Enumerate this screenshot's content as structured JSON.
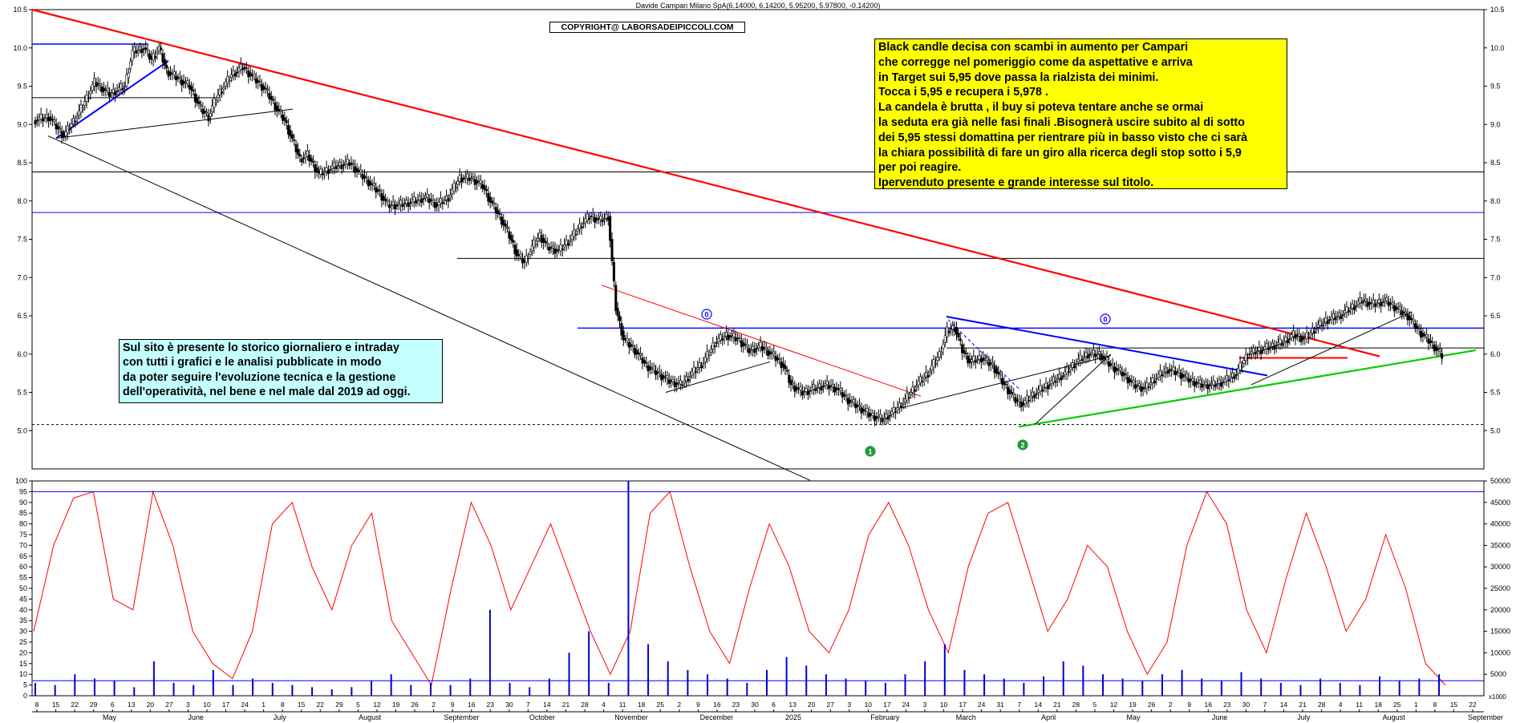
{
  "window": {
    "title": "Davide Campari Milano SpA(6.14000, 6.14200, 5.95200, 5.97800, -0.14200)",
    "copyright": "COPYRIGHT@ LABORSADEIPICCOLI.COM"
  },
  "annotations": {
    "yellow_note": "Black candle decisa con scambi in aumento per Campari\nche corregge nel pomeriggio come da aspettative e arriva\nin Target sui 5,95 dove passa la rialzista dei minimi.\nTocca i 5,95 e recupera i 5,978 .\nLa candela è brutta , il buy si poteva tentare anche se ormai\nla seduta era già nelle fasi finali .Bisognerà uscire subito al di sotto\ndei 5,95 stessi domattina per rientrare più in basso visto che ci sarà\nla chiara possibilità di fare un giro alla ricerca degli stop sotto i 5,9\nper poi reagire.\nIpervenduto presente e grande interesse sul titolo.",
    "cyan_note": "Sul sito è presente lo storico giornaliero e intraday\ncon tutti i grafici e le analisi pubblicate in modo\nda poter seguire l'evoluzione tecnica e la gestione\ndell'operatività, nel bene e nel male dal 2019 ad oggi.",
    "markers": [
      "1",
      "2",
      "0",
      "0"
    ]
  },
  "colors": {
    "candle_up": "#ffffff",
    "candle_down": "#000000",
    "trendline_red": "#ff0000",
    "trendline_blue": "#0000ff",
    "trendline_green": "#00cc00",
    "oscillator": "#ff0000",
    "volume": "#0000cc",
    "marker_green": "#1f9a3a",
    "note_yellow": "#ffff00",
    "note_cyan": "#c4ffff"
  },
  "chart_data": [
    {
      "type": "candlestick",
      "title": "Davide Campari Milano SpA(6.14000, 6.14200, 5.95200, 5.97800, -0.14200)",
      "ylim": [
        4.5,
        10.5
      ],
      "y_ticks": [
        "10.5",
        "10.0",
        "9.5",
        "9.0",
        "8.5",
        "8.0",
        "7.5",
        "7.0",
        "6.5",
        "6.0",
        "5.5",
        "5.0"
      ],
      "x_day_labels": [
        "8",
        "15",
        "22",
        "29",
        "6",
        "13",
        "20",
        "27",
        "3",
        "10",
        "17",
        "24",
        "1",
        "8",
        "15",
        "22",
        "29",
        "5",
        "12",
        "19",
        "26",
        "2",
        "9",
        "16",
        "23",
        "30",
        "7",
        "14",
        "21",
        "28",
        "4",
        "11",
        "18",
        "25",
        "2",
        "9",
        "16",
        "23",
        "30",
        "6",
        "13",
        "20",
        "27",
        "3",
        "10",
        "17",
        "24",
        "3",
        "10",
        "17",
        "24",
        "31",
        "7",
        "14",
        "21",
        "28",
        "5",
        "12",
        "19",
        "26",
        "2",
        "9",
        "16",
        "23",
        "30",
        "7",
        "14",
        "21",
        "28",
        "4",
        "11",
        "18",
        "25",
        "1",
        "8",
        "15",
        "22"
      ],
      "x_month_labels": [
        "May",
        "June",
        "July",
        "August",
        "September",
        "October",
        "November",
        "December",
        "2025",
        "February",
        "March",
        "April",
        "May",
        "June",
        "July",
        "August",
        "September"
      ],
      "price_path": [
        [
          0,
          9.05
        ],
        [
          8,
          9.1
        ],
        [
          16,
          8.85
        ],
        [
          25,
          9.2
        ],
        [
          32,
          9.55
        ],
        [
          40,
          9.4
        ],
        [
          48,
          9.5
        ],
        [
          52,
          9.95
        ],
        [
          58,
          10.0
        ],
        [
          62,
          9.85
        ],
        [
          66,
          10.0
        ],
        [
          70,
          9.7
        ],
        [
          76,
          9.6
        ],
        [
          82,
          9.5
        ],
        [
          88,
          9.2
        ],
        [
          92,
          9.1
        ],
        [
          96,
          9.35
        ],
        [
          100,
          9.5
        ],
        [
          104,
          9.65
        ],
        [
          110,
          9.75
        ],
        [
          116,
          9.6
        ],
        [
          122,
          9.45
        ],
        [
          128,
          9.2
        ],
        [
          132,
          9.05
        ],
        [
          136,
          8.8
        ],
        [
          140,
          8.55
        ],
        [
          144,
          8.6
        ],
        [
          150,
          8.35
        ],
        [
          158,
          8.45
        ],
        [
          166,
          8.5
        ],
        [
          172,
          8.35
        ],
        [
          178,
          8.2
        ],
        [
          182,
          8.1
        ],
        [
          186,
          7.95
        ],
        [
          192,
          7.95
        ],
        [
          200,
          8.0
        ],
        [
          206,
          8.05
        ],
        [
          212,
          7.95
        ],
        [
          218,
          8.05
        ],
        [
          224,
          8.3
        ],
        [
          230,
          8.3
        ],
        [
          236,
          8.2
        ],
        [
          240,
          8.0
        ],
        [
          246,
          7.75
        ],
        [
          250,
          7.55
        ],
        [
          254,
          7.3
        ],
        [
          258,
          7.2
        ],
        [
          262,
          7.4
        ],
        [
          266,
          7.55
        ],
        [
          270,
          7.4
        ],
        [
          276,
          7.35
        ],
        [
          282,
          7.5
        ],
        [
          288,
          7.7
        ],
        [
          292,
          7.8
        ],
        [
          298,
          7.75
        ],
        [
          302,
          7.8
        ],
        [
          306,
          6.6
        ],
        [
          310,
          6.2
        ],
        [
          316,
          6.05
        ],
        [
          322,
          5.85
        ],
        [
          328,
          5.75
        ],
        [
          334,
          5.65
        ],
        [
          340,
          5.6
        ],
        [
          346,
          5.75
        ],
        [
          352,
          5.9
        ],
        [
          358,
          6.15
        ],
        [
          364,
          6.25
        ],
        [
          370,
          6.2
        ],
        [
          376,
          6.05
        ],
        [
          382,
          6.1
        ],
        [
          388,
          6.0
        ],
        [
          394,
          5.85
        ],
        [
          398,
          5.6
        ],
        [
          404,
          5.5
        ],
        [
          410,
          5.55
        ],
        [
          416,
          5.6
        ],
        [
          422,
          5.55
        ],
        [
          428,
          5.4
        ],
        [
          434,
          5.3
        ],
        [
          440,
          5.2
        ],
        [
          446,
          5.15
        ],
        [
          452,
          5.25
        ],
        [
          458,
          5.4
        ],
        [
          464,
          5.6
        ],
        [
          470,
          5.75
        ],
        [
          476,
          6.0
        ],
        [
          480,
          6.3
        ],
        [
          484,
          6.35
        ],
        [
          488,
          6.05
        ],
        [
          492,
          5.9
        ],
        [
          498,
          5.95
        ],
        [
          504,
          5.85
        ],
        [
          510,
          5.6
        ],
        [
          516,
          5.4
        ],
        [
          520,
          5.35
        ],
        [
          524,
          5.45
        ],
        [
          530,
          5.55
        ],
        [
          536,
          5.65
        ],
        [
          542,
          5.75
        ],
        [
          548,
          5.9
        ],
        [
          554,
          6.0
        ],
        [
          560,
          6.0
        ],
        [
          566,
          5.85
        ],
        [
          572,
          5.75
        ],
        [
          578,
          5.6
        ],
        [
          584,
          5.55
        ],
        [
          590,
          5.7
        ],
        [
          596,
          5.8
        ],
        [
          602,
          5.75
        ],
        [
          608,
          5.65
        ],
        [
          614,
          5.6
        ],
        [
          620,
          5.6
        ],
        [
          626,
          5.65
        ],
        [
          632,
          5.75
        ],
        [
          638,
          6.0
        ],
        [
          644,
          6.05
        ],
        [
          650,
          6.1
        ],
        [
          656,
          6.15
        ],
        [
          662,
          6.25
        ],
        [
          668,
          6.2
        ],
        [
          674,
          6.35
        ],
        [
          680,
          6.45
        ],
        [
          686,
          6.5
        ],
        [
          692,
          6.6
        ],
        [
          698,
          6.7
        ],
        [
          704,
          6.65
        ],
        [
          710,
          6.7
        ],
        [
          716,
          6.6
        ],
        [
          722,
          6.5
        ],
        [
          728,
          6.3
        ],
        [
          734,
          6.15
        ],
        [
          740,
          5.98
        ]
      ],
      "horizontal_levels": [
        10.05,
        9.35,
        8.38,
        7.85,
        7.25,
        6.34,
        6.08,
        5.08
      ],
      "last_close": 5.978
    },
    {
      "type": "line",
      "title": "",
      "ylim": [
        0,
        100
      ],
      "y_ticks": [
        "100",
        "95",
        "90",
        "85",
        "80",
        "75",
        "70",
        "65",
        "60",
        "55",
        "50",
        "45",
        "40",
        "35",
        "30",
        "25",
        "20",
        "15",
        "10",
        "5",
        "0"
      ],
      "levels": [
        95,
        7
      ],
      "series": [
        {
          "values": [
            30,
            70,
            92,
            95,
            45,
            40,
            95,
            70,
            30,
            15,
            8,
            30,
            80,
            90,
            60,
            40,
            70,
            85,
            35,
            20,
            5,
            50,
            90,
            70,
            40,
            60,
            80,
            55,
            30,
            10,
            30,
            85,
            95,
            60,
            30,
            15,
            50,
            80,
            60,
            30,
            20,
            40,
            75,
            90,
            70,
            40,
            20,
            60,
            85,
            90,
            60,
            30,
            45,
            70,
            60,
            30,
            10,
            25,
            70,
            95,
            80,
            40,
            20,
            55,
            85,
            60,
            30,
            45,
            75,
            50,
            15,
            5
          ]
        }
      ]
    },
    {
      "type": "bar",
      "title": "",
      "ylim": [
        0,
        50000
      ],
      "y_ticks": [
        "50000",
        "45000",
        "40000",
        "35000",
        "30000",
        "25000",
        "20000",
        "15000",
        "10000",
        "5000"
      ],
      "y_unit": "x1000",
      "levels": [
        7000
      ],
      "values": [
        3000,
        2500,
        5000,
        4000,
        3500,
        2000,
        8000,
        3000,
        2500,
        6000,
        2500,
        4000,
        3000,
        2500,
        2000,
        1500,
        2000,
        3500,
        5000,
        2500,
        3000,
        2500,
        4000,
        20000,
        3000,
        2000,
        4000,
        10000,
        15000,
        3000,
        50000,
        12000,
        8000,
        6000,
        5000,
        4000,
        3000,
        6000,
        9000,
        7000,
        5000,
        4000,
        3500,
        3000,
        5000,
        8000,
        12000,
        6000,
        5000,
        4000,
        3000,
        4500,
        8000,
        7000,
        5000,
        4000,
        3500,
        5000,
        6000,
        4000,
        3500,
        5500,
        4000,
        3000,
        2500,
        4000,
        3000,
        2500,
        4500,
        3500,
        4000,
        5000
      ]
    }
  ]
}
